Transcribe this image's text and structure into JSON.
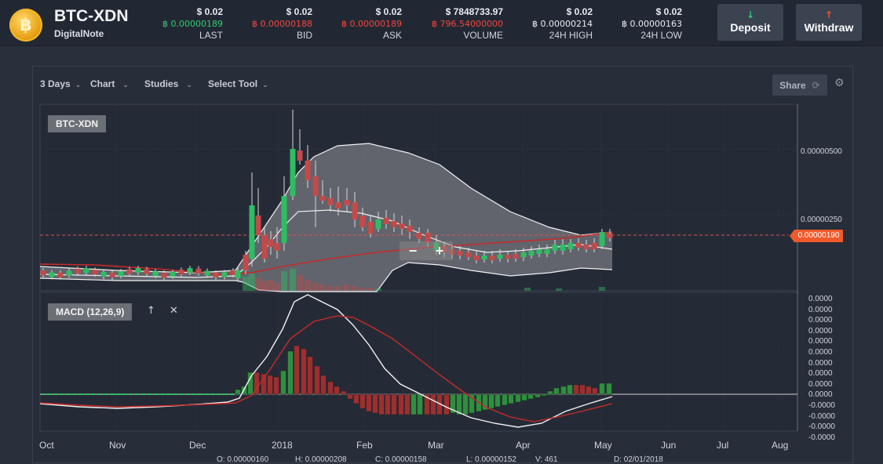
{
  "header": {
    "coin_symbol": "฿",
    "pair": "BTC-XDN",
    "coin_name": "DigitalNote",
    "stats": [
      {
        "usd": "$ 0.02",
        "btc": "0.00000189",
        "btc_color": "green",
        "label": "LAST"
      },
      {
        "usd": "$ 0.02",
        "btc": "0.00000188",
        "btc_color": "red",
        "label": "BID"
      },
      {
        "usd": "$ 0.02",
        "btc": "0.00000189",
        "btc_color": "red",
        "label": "ASK"
      },
      {
        "usd": "$ 7848733.97",
        "btc": "796.54000000",
        "btc_color": "red",
        "label": "VOLUME"
      },
      {
        "usd": "$ 0.02",
        "btc": "0.00000214",
        "btc_color": "white",
        "label": "24H HIGH"
      },
      {
        "usd": "$ 0.02",
        "btc": "0.00000163",
        "btc_color": "white",
        "label": "24H LOW"
      }
    ],
    "btc_sign": "฿",
    "deposit_label": "Deposit",
    "withdraw_label": "Withdraw",
    "deposit_icon": "↓",
    "withdraw_icon": "↑"
  },
  "toolbar": {
    "range": "3 Days",
    "chart": "Chart",
    "studies": "Studies",
    "select_tool": "Select Tool",
    "share": "Share",
    "share_icon": "⟳",
    "gear_icon": "⚙",
    "chevron": "⌄"
  },
  "price_panel": {
    "label": "BTC-XDN",
    "y_ticks": [
      "0.00000500",
      "0.00000250"
    ],
    "current_price_tag": "0.00000190",
    "zoom_out": "−",
    "zoom_in": "+"
  },
  "macd_panel": {
    "label": "MACD (12,26,9)",
    "up_icon": "↑",
    "close_icon": "✕",
    "y_ticks": [
      "0.0000",
      "0.0000",
      "0.0000",
      "0.0000",
      "0.0000",
      "0.0000",
      "0.0000",
      "0.0000",
      "0.0000",
      "0.0000",
      "-0.0000",
      "-0.0000",
      "-0.0000",
      "-0.0000"
    ]
  },
  "x_axis": [
    "Oct",
    "Nov",
    "Dec",
    "2018",
    "Feb",
    "Mar",
    "Apr",
    "May",
    "Jun",
    "Jul",
    "Aug"
  ],
  "ohlc_readout": {
    "o": "O: 0.00000160",
    "h": "H: 0.00000208",
    "c": "C: 0.00000158",
    "l": "L: 0.00000152",
    "v": "V: 461",
    "d": "D: 02/01/2018"
  },
  "chart_data": [
    {
      "type": "candlestick",
      "title": "BTC-XDN",
      "x": [
        "Oct",
        "Nov",
        "Dec",
        "2018",
        "Feb",
        "Mar",
        "Apr",
        "May"
      ],
      "close": [
        3e-07,
        2e-07,
        2e-07,
        4.8e-06,
        3e-06,
        1.6e-06,
        1.2e-06,
        1.9e-06
      ],
      "ylim": [
        0,
        6.5e-06
      ],
      "overlays": [
        "Bollinger Bands",
        "Moving Average"
      ],
      "last_price": 1.9e-06
    },
    {
      "type": "bar",
      "title": "MACD (12,26,9)",
      "series": [
        {
          "name": "MACD",
          "values": [
            -0.2,
            -0.25,
            -0.2,
            0.1,
            3.1,
            2.2,
            -0.4,
            -1.6,
            -0.7,
            0.3
          ]
        },
        {
          "name": "Signal",
          "values": [
            -0.1,
            -0.2,
            -0.15,
            0.0,
            2.2,
            2.4,
            0.3,
            -0.9,
            -1.1,
            -0.2
          ]
        }
      ]
    }
  ]
}
